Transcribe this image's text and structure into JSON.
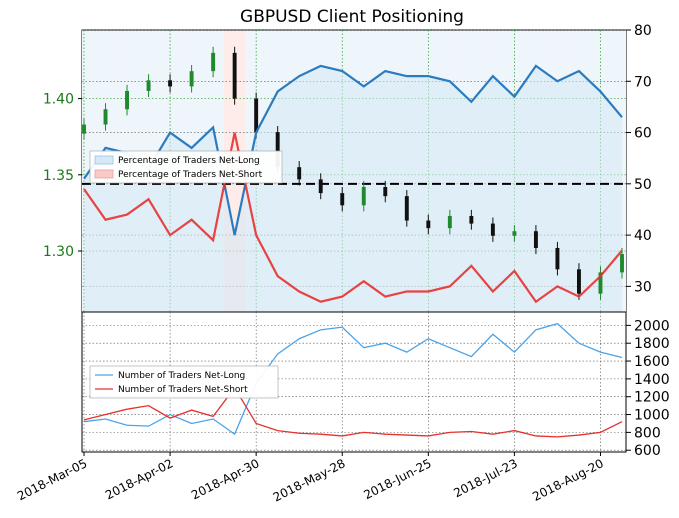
{
  "colors": {
    "net_long_line": "#2b7bbf",
    "net_long_fill": "#d6e8f5",
    "net_short_line": "#e8302c",
    "net_short_fill": "#f7c9c7",
    "price_up": "#1f8a2c",
    "price_down": "#111111",
    "left_axis_text": "#1a7a1a",
    "grid_green": "#1f9a1f",
    "count_long_line": "#4aa3e8",
    "count_short_line": "#e8302c"
  },
  "chart_data": [
    {
      "type": "line",
      "title": "GBPUSD Client Positioning",
      "x": [
        "2018-Mar-05",
        "2018-Mar-12",
        "2018-Mar-19",
        "2018-Mar-26",
        "2018-Apr-02",
        "2018-Apr-09",
        "2018-Apr-16",
        "2018-Apr-23",
        "2018-Apr-30",
        "2018-May-07",
        "2018-May-14",
        "2018-May-21",
        "2018-May-28",
        "2018-Jun-04",
        "2018-Jun-11",
        "2018-Jun-18",
        "2018-Jun-25",
        "2018-Jul-02",
        "2018-Jul-09",
        "2018-Jul-16",
        "2018-Jul-23",
        "2018-Jul-30",
        "2018-Aug-06",
        "2018-Aug-13",
        "2018-Aug-20",
        "2018-Aug-27"
      ],
      "x_tick_labels": [
        "2018-Mar-05",
        "2018-Apr-02",
        "2018-Apr-30",
        "2018-May-28",
        "2018-Jun-25",
        "2018-Jul-23",
        "2018-Aug-20"
      ],
      "series": [
        {
          "name": "Percentage of Traders Net-Long",
          "axis": "right",
          "values": [
            51,
            57,
            56,
            53,
            60,
            57,
            61,
            40,
            60,
            68,
            71,
            73,
            72,
            69,
            72,
            71,
            71,
            70,
            66,
            71,
            67,
            73,
            70,
            72,
            68,
            63
          ]
        },
        {
          "name": "Percentage of Traders Net-Short",
          "axis": "right",
          "values": [
            49,
            43,
            44,
            47,
            40,
            43,
            39,
            60,
            40,
            32,
            29,
            27,
            28,
            31,
            28,
            29,
            29,
            30,
            34,
            29,
            33,
            27,
            30,
            28,
            32,
            37
          ]
        },
        {
          "name": "GBPUSD",
          "type": "candlestick",
          "axis": "left",
          "values": [
            1.383,
            1.393,
            1.405,
            1.412,
            1.408,
            1.418,
            1.43,
            1.4,
            1.378,
            1.355,
            1.347,
            1.338,
            1.33,
            1.342,
            1.336,
            1.32,
            1.315,
            1.323,
            1.318,
            1.31,
            1.313,
            1.302,
            1.288,
            1.272,
            1.286,
            1.298
          ]
        }
      ],
      "reference_line": 50,
      "ylim_right": [
        25,
        80
      ],
      "yticks_right": [
        "30",
        "40",
        "50",
        "60",
        "70",
        "80"
      ],
      "ylim_left": [
        1.26,
        1.445
      ],
      "yticks_left": [
        "1.30",
        "1.35",
        "1.40"
      ],
      "grid": true,
      "legend": "middle-left"
    },
    {
      "type": "line",
      "x": [
        "2018-Mar-05",
        "2018-Mar-12",
        "2018-Mar-19",
        "2018-Mar-26",
        "2018-Apr-02",
        "2018-Apr-09",
        "2018-Apr-16",
        "2018-Apr-23",
        "2018-Apr-30",
        "2018-May-07",
        "2018-May-14",
        "2018-May-21",
        "2018-May-28",
        "2018-Jun-04",
        "2018-Jun-11",
        "2018-Jun-18",
        "2018-Jun-25",
        "2018-Jul-02",
        "2018-Jul-09",
        "2018-Jul-16",
        "2018-Jul-23",
        "2018-Jul-30",
        "2018-Aug-06",
        "2018-Aug-13",
        "2018-Aug-20",
        "2018-Aug-27"
      ],
      "series": [
        {
          "name": "Number of Traders Net-Long",
          "values": [
            920,
            950,
            880,
            870,
            1000,
            900,
            950,
            780,
            1350,
            1680,
            1850,
            1950,
            1980,
            1750,
            1800,
            1700,
            1850,
            1750,
            1650,
            1900,
            1700,
            1950,
            2020,
            1800,
            1700,
            1640
          ]
        },
        {
          "name": "Number of Traders Net-Short",
          "values": [
            940,
            1000,
            1060,
            1100,
            960,
            1050,
            980,
            1300,
            900,
            820,
            790,
            780,
            760,
            800,
            780,
            770,
            760,
            800,
            810,
            780,
            820,
            760,
            750,
            770,
            800,
            920
          ]
        }
      ],
      "ylim": [
        580,
        2150
      ],
      "yticks": [
        "600",
        "800",
        "1000",
        "1200",
        "1400",
        "1600",
        "1800",
        "2000"
      ],
      "grid": true,
      "legend": "middle-left"
    }
  ]
}
